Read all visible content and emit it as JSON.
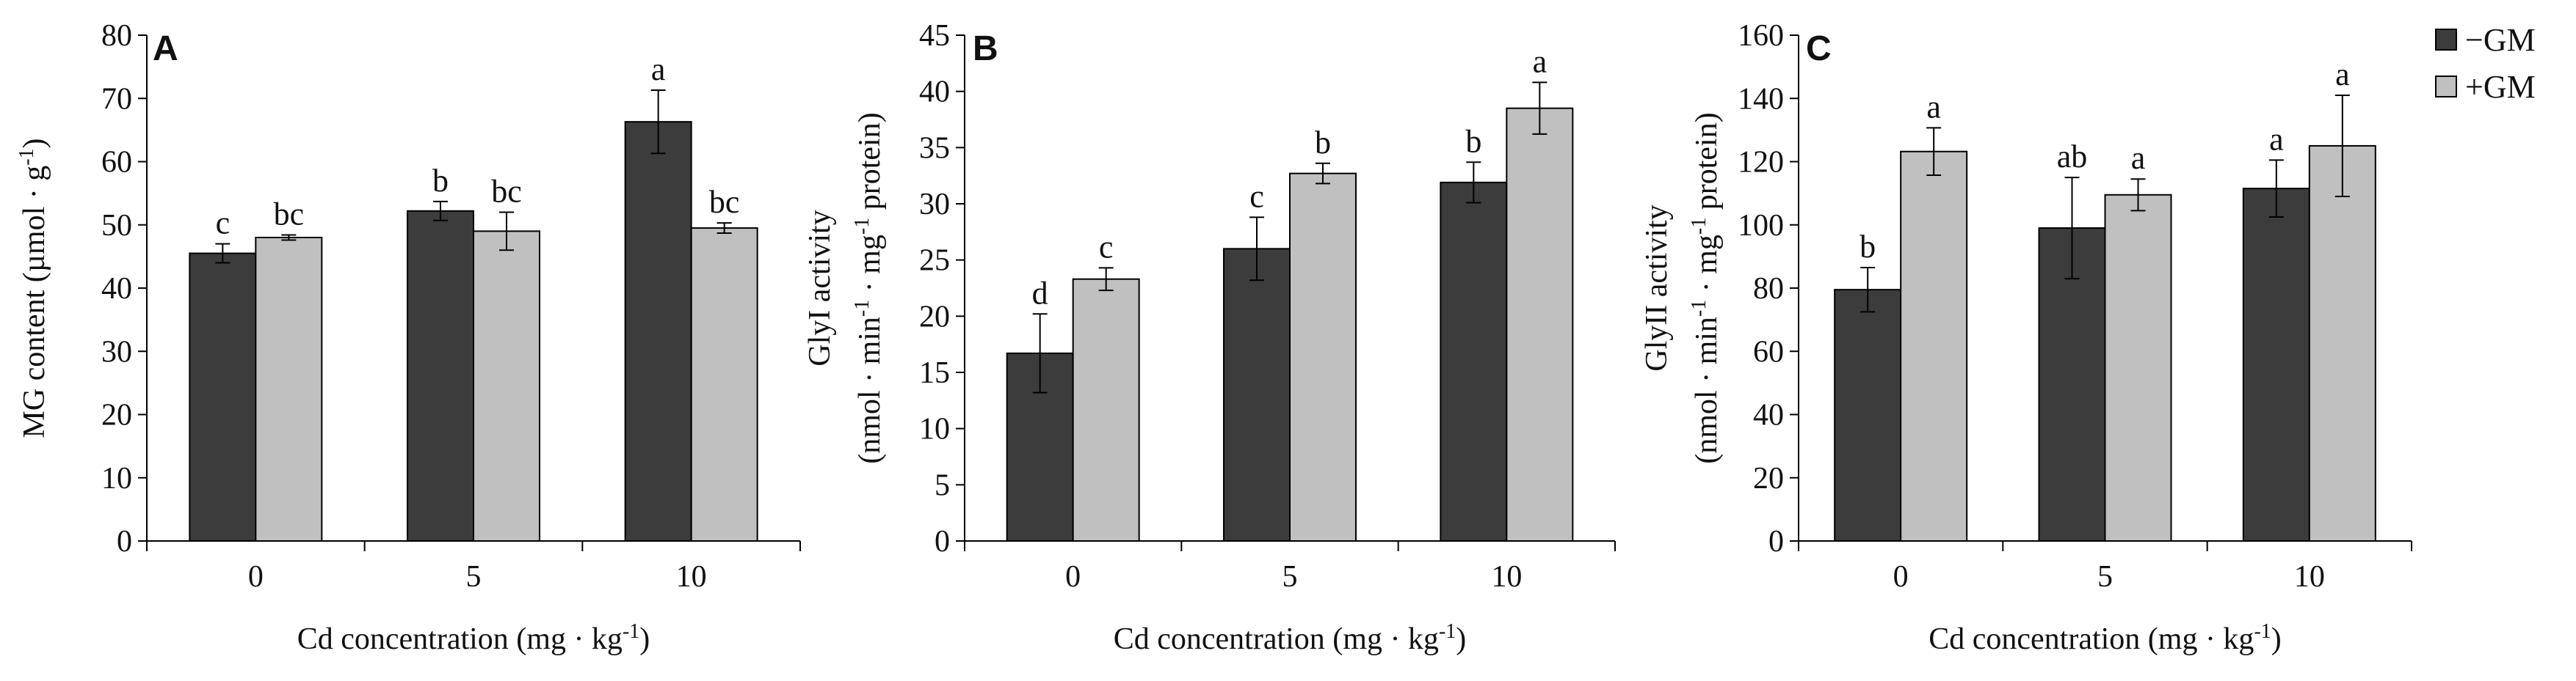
{
  "legend": {
    "minus": {
      "label": "−GM",
      "color": "#3c3c3c"
    },
    "plus": {
      "label": "+GM",
      "color": "#c0c0c0"
    }
  },
  "chart_data": [
    {
      "type": "bar",
      "panel": "A",
      "categories": [
        "0",
        "5",
        "10"
      ],
      "xlabel": "Cd concentration (mg · kg",
      "xlabel_sup": "-1",
      "xlabel_tail": ")",
      "ylabel_lines": [
        {
          "parts": [
            {
              "t": "MG content (µmol · g"
            },
            {
              "t": "-1",
              "sup": true
            },
            {
              "t": ")"
            }
          ]
        }
      ],
      "ylim": [
        0,
        80
      ],
      "yticks": [
        0,
        10,
        20,
        30,
        40,
        50,
        60,
        70,
        80
      ],
      "series": [
        {
          "name": "−GM",
          "values": [
            45.5,
            52.2,
            66.3
          ],
          "errors": [
            1.5,
            1.5,
            5.0
          ],
          "letters": [
            "c",
            "b",
            "a"
          ]
        },
        {
          "name": "+GM",
          "values": [
            48.0,
            49.0,
            49.5
          ],
          "errors": [
            0.4,
            3.0,
            0.8
          ],
          "letters": [
            "bc",
            "bc",
            "bc"
          ]
        }
      ]
    },
    {
      "type": "bar",
      "panel": "B",
      "categories": [
        "0",
        "5",
        "10"
      ],
      "xlabel": "Cd concentration (mg · kg",
      "xlabel_sup": "-1",
      "xlabel_tail": ")",
      "ylabel_lines": [
        {
          "parts": [
            {
              "t": "GlyI activity"
            }
          ]
        },
        {
          "parts": [
            {
              "t": "(nmol · min"
            },
            {
              "t": "-1",
              "sup": true
            },
            {
              "t": " · mg"
            },
            {
              "t": "-1",
              "sup": true
            },
            {
              "t": " protein)"
            }
          ]
        }
      ],
      "ylim": [
        0,
        45
      ],
      "yticks": [
        0,
        5,
        10,
        15,
        20,
        25,
        30,
        35,
        40,
        45
      ],
      "series": [
        {
          "name": "−GM",
          "values": [
            16.7,
            26.0,
            31.9
          ],
          "errors": [
            3.5,
            2.8,
            1.8
          ],
          "letters": [
            "d",
            "c",
            "b"
          ]
        },
        {
          "name": "+GM",
          "values": [
            23.3,
            32.7,
            38.5
          ],
          "errors": [
            1.0,
            0.9,
            2.3
          ],
          "letters": [
            "c",
            "b",
            "a"
          ]
        }
      ]
    },
    {
      "type": "bar",
      "panel": "C",
      "categories": [
        "0",
        "5",
        "10"
      ],
      "xlabel": "Cd concentration (mg · kg",
      "xlabel_sup": "-1",
      "xlabel_tail": ")",
      "ylabel_lines": [
        {
          "parts": [
            {
              "t": "GlyII activity"
            }
          ]
        },
        {
          "parts": [
            {
              "t": "(nmol · min"
            },
            {
              "t": "-1",
              "sup": true
            },
            {
              "t": " · mg"
            },
            {
              "t": "-1",
              "sup": true
            },
            {
              "t": " protein)"
            }
          ]
        }
      ],
      "ylim": [
        0,
        160
      ],
      "yticks": [
        0,
        20,
        40,
        60,
        80,
        100,
        120,
        140,
        160
      ],
      "series": [
        {
          "name": "−GM",
          "values": [
            79.5,
            99.0,
            111.5
          ],
          "errors": [
            7.0,
            16.0,
            9.0
          ],
          "letters": [
            "b",
            "ab",
            "a"
          ]
        },
        {
          "name": "+GM",
          "values": [
            123.2,
            109.5,
            125.0
          ],
          "errors": [
            7.5,
            5.0,
            16.0
          ],
          "letters": [
            "a",
            "a",
            "a"
          ]
        }
      ]
    }
  ]
}
